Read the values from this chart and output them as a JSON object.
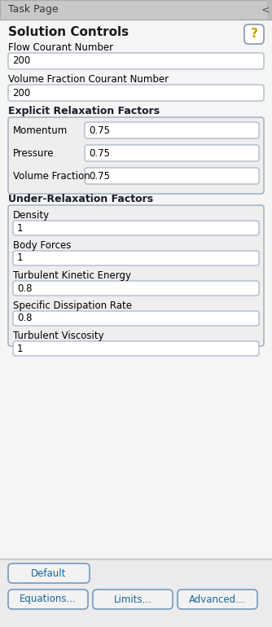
{
  "title": "Task Page",
  "section_title": "Solution Controls",
  "bg_color": "#ebebeb",
  "content_bg": "#f0f0f0",
  "header_bg": "#c8c8c8",
  "white": "#ffffff",
  "border_color": "#aaaaaa",
  "text_color": "#000000",
  "input_border": "#b0bbc8",
  "section_border": "#9aaabb",
  "fields_top": [
    {
      "label": "Flow Courant Number",
      "value": "200"
    },
    {
      "label": "Volume Fraction Courant Number",
      "value": "200"
    }
  ],
  "explicit_group": {
    "label": "Explicit Relaxation Factors",
    "fields": [
      {
        "label": "Momentum",
        "value": "0.75"
      },
      {
        "label": "Pressure",
        "value": "0.75"
      },
      {
        "label": "Volume Fraction",
        "value": "0.75"
      }
    ]
  },
  "under_group": {
    "label": "Under-Relaxation Factors",
    "fields": [
      {
        "label": "Density",
        "value": "1"
      },
      {
        "label": "Body Forces",
        "value": "1"
      },
      {
        "label": "Turbulent Kinetic Energy",
        "value": "0.8"
      },
      {
        "label": "Specific Dissipation Rate",
        "value": "0.8"
      },
      {
        "label": "Turbulent Viscosity",
        "value": "1"
      }
    ]
  },
  "buttons_row1": [
    "Default"
  ],
  "buttons_row2": [
    "Equations...",
    "Limits...",
    "Advanced..."
  ],
  "help_icon_color": "#c8a000",
  "help_border_color": "#8899aa",
  "button_text_color": "#1a6699",
  "bold_section_color": "#1a1a2a"
}
